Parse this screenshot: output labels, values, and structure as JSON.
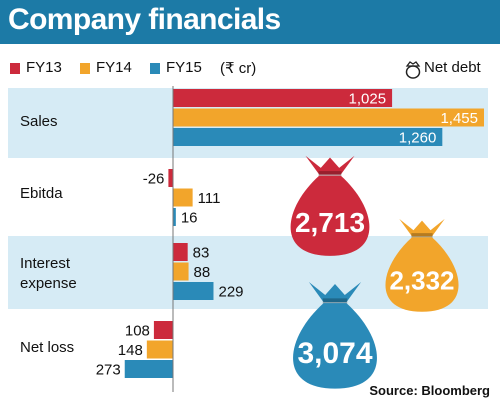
{
  "title": "Company financials",
  "legend": {
    "series": [
      {
        "label": "FY13",
        "color": "#cc2a3c"
      },
      {
        "label": "FY14",
        "color": "#f2a52b"
      },
      {
        "label": "FY15",
        "color": "#2a8ab8"
      }
    ],
    "unit": "(₹ cr)",
    "net_debt_label": "Net debt"
  },
  "source": "Source: Bloomberg",
  "chart_data": {
    "type": "bar",
    "orientation": "horizontal",
    "categories": [
      "Sales",
      "Ebitda",
      "Interest expense",
      "Net loss"
    ],
    "series": [
      {
        "name": "FY13",
        "color": "#cc2a3c",
        "values": [
          1025,
          -26,
          83,
          108
        ],
        "labels": [
          "1,025",
          "-26",
          "83",
          "108"
        ]
      },
      {
        "name": "FY14",
        "color": "#f2a52b",
        "values": [
          1455,
          111,
          88,
          148
        ],
        "labels": [
          "1,455",
          "111",
          "88",
          "148"
        ]
      },
      {
        "name": "FY15",
        "color": "#2a8ab8",
        "values": [
          1260,
          16,
          229,
          273
        ],
        "labels": [
          "1,260",
          "16",
          "229",
          "273"
        ]
      }
    ],
    "net_debt": [
      {
        "year": "FY13",
        "value": 2713,
        "label": "2,713",
        "color": "#cc2a3c"
      },
      {
        "year": "FY14",
        "value": 2332,
        "label": "2,332",
        "color": "#f2a52b"
      },
      {
        "year": "FY15",
        "value": 3074,
        "label": "3,074",
        "color": "#2a8ab8"
      }
    ],
    "title": "Company financials",
    "unit": "₹ cr"
  }
}
